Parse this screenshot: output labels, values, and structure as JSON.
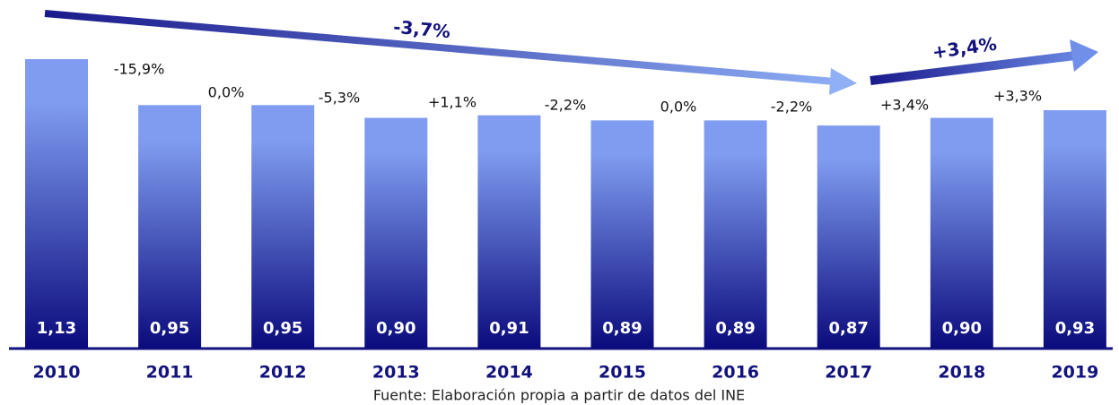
{
  "chart_data": {
    "type": "bar",
    "categories": [
      "2010",
      "2011",
      "2012",
      "2013",
      "2014",
      "2015",
      "2016",
      "2017",
      "2018",
      "2019"
    ],
    "values": [
      1.13,
      0.95,
      0.95,
      0.9,
      0.91,
      0.89,
      0.89,
      0.87,
      0.9,
      0.93
    ],
    "value_labels": [
      "1,13",
      "0,95",
      "0,95",
      "0,90",
      "0,91",
      "0,89",
      "0,89",
      "0,87",
      "0,90",
      "0,93"
    ],
    "changes": [
      "-15,9%",
      "0,0%",
      "-5,3%",
      "+1,1%",
      "-2,2%",
      "0,0%",
      "-2,2%",
      "+3,4%",
      "+3,3%"
    ],
    "trend_labels": [
      "-3,7%",
      "+3,4%"
    ],
    "source": "Fuente: Elaboración propia a partir de datos del INE",
    "color_top": "#7f9cf0",
    "color_bottom": "#0b0b7d"
  }
}
